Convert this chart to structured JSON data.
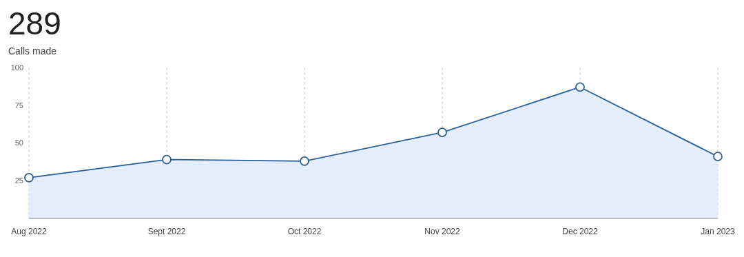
{
  "chart_data": {
    "type": "area",
    "title": "289",
    "subtitle": "Calls made",
    "categories": [
      "Aug 2022",
      "Sept 2022",
      "Oct 2022",
      "Nov 2022",
      "Dec 2022",
      "Jan 2023"
    ],
    "series": [
      {
        "color": "#2a6099",
        "values": [
          27,
          39,
          38,
          57,
          87,
          41
        ]
      }
    ],
    "ylim": [
      0,
      100
    ],
    "yticks": [
      25,
      50,
      75,
      100
    ],
    "grid": "x",
    "marker": "circle",
    "line_style": "solid"
  }
}
